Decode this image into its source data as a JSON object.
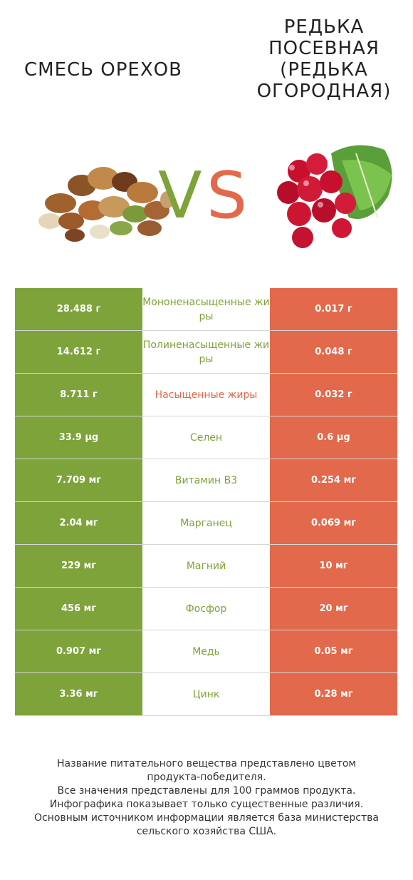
{
  "header": {
    "left_title": "СМЕСЬ ОРЕХОВ",
    "right_title": "РЕДЬКА ПОСЕВНАЯ (РЕДЬКА ОГОРОДНАЯ)",
    "vs_v": "V",
    "vs_s": "S"
  },
  "colors": {
    "left_accent": "#7ea33a",
    "right_accent": "#e2694b"
  },
  "rows": [
    {
      "left": "28.488 г",
      "name": "Мононенасыщенные жиры",
      "right": "0.017 г",
      "winner": "left"
    },
    {
      "left": "14.612 г",
      "name": "Полиненасыщенные жиры",
      "right": "0.048 г",
      "winner": "left"
    },
    {
      "left": "8.711 г",
      "name": "Насыщенные жиры",
      "right": "0.032 г",
      "winner": "right"
    },
    {
      "left": "33.9 µg",
      "name": "Селен",
      "right": "0.6 µg",
      "winner": "left"
    },
    {
      "left": "7.709 мг",
      "name": "Витамин B3",
      "right": "0.254 мг",
      "winner": "left"
    },
    {
      "left": "2.04 мг",
      "name": "Марганец",
      "right": "0.069 мг",
      "winner": "left"
    },
    {
      "left": "229 мг",
      "name": "Магний",
      "right": "10 мг",
      "winner": "left"
    },
    {
      "left": "456 мг",
      "name": "Фосфор",
      "right": "20 мг",
      "winner": "left"
    },
    {
      "left": "0.907 мг",
      "name": "Медь",
      "right": "0.05 мг",
      "winner": "left"
    },
    {
      "left": "3.36 мг",
      "name": "Цинк",
      "right": "0.28 мг",
      "winner": "left"
    }
  ],
  "footer": {
    "line1": "Название питательного вещества представлено цветом",
    "line2": "продукта-победителя.",
    "line3": "Все значения представлены для 100 граммов продукта.",
    "line4": "Инфографика показывает только существенные различия.",
    "line5": "Основным источником информации является база министерства",
    "line6": "сельского хозяйства США."
  }
}
